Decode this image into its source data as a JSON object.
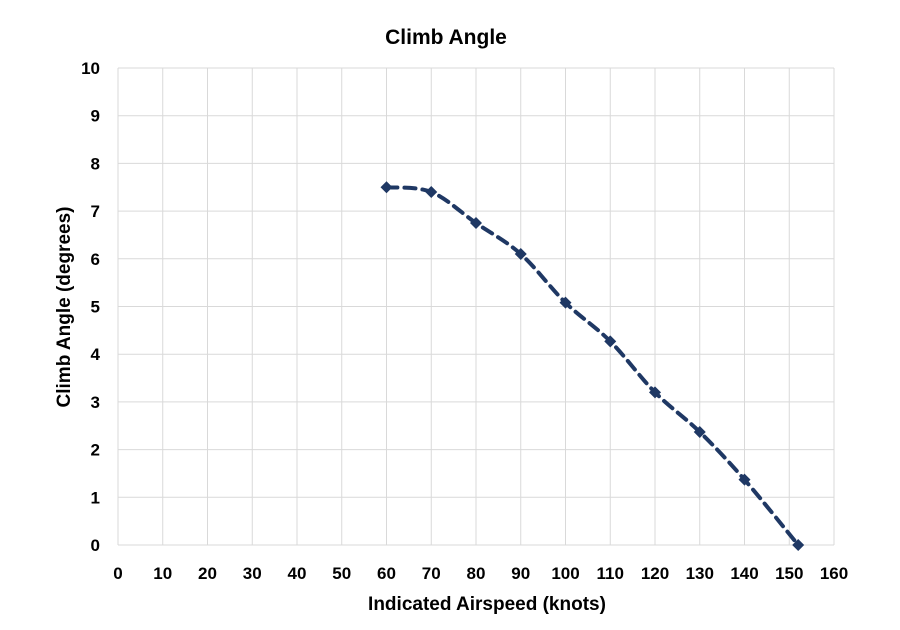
{
  "chart_data": {
    "type": "scatter",
    "title": "Climb Angle",
    "xlabel": "Indicated Airspeed (knots)",
    "ylabel": "Climb Angle (degrees)",
    "xlim": [
      0,
      160
    ],
    "ylim": [
      0,
      10
    ],
    "x_ticks": [
      0,
      10,
      20,
      30,
      40,
      50,
      60,
      70,
      80,
      90,
      100,
      110,
      120,
      130,
      140,
      150,
      160
    ],
    "y_ticks": [
      0,
      1,
      2,
      3,
      4,
      5,
      6,
      7,
      8,
      9,
      10
    ],
    "grid": true,
    "legend": "none",
    "series": [
      {
        "color": "#1f3864",
        "marker": "diamond",
        "line": "dashed-smooth",
        "points": [
          {
            "x": 60,
            "y": 7.5
          },
          {
            "x": 70,
            "y": 7.4
          },
          {
            "x": 80,
            "y": 6.75
          },
          {
            "x": 90,
            "y": 6.1
          },
          {
            "x": 100,
            "y": 5.08
          },
          {
            "x": 110,
            "y": 4.27
          },
          {
            "x": 120,
            "y": 3.2
          },
          {
            "x": 130,
            "y": 2.37
          },
          {
            "x": 140,
            "y": 1.37
          },
          {
            "x": 152,
            "y": 0
          }
        ]
      }
    ]
  }
}
